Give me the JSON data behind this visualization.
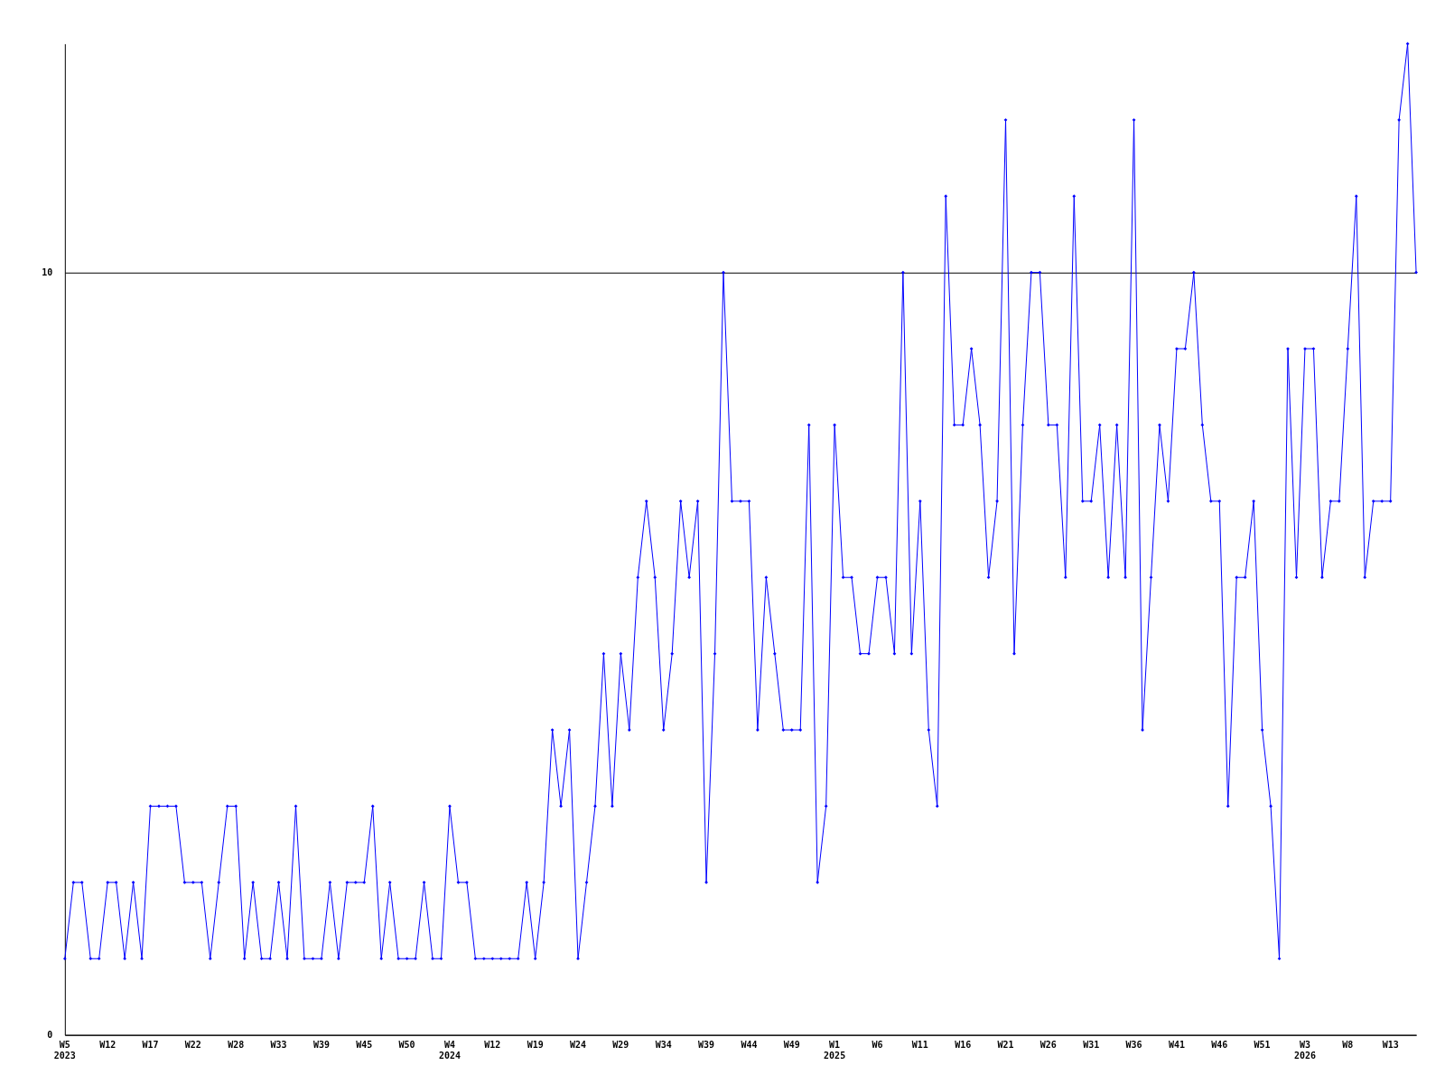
{
  "chart_data": {
    "type": "line",
    "categories": [
      "W5\n2023",
      null,
      null,
      null,
      null,
      "W12",
      null,
      null,
      null,
      null,
      "W17",
      null,
      null,
      null,
      null,
      "W22",
      null,
      null,
      null,
      null,
      "W28",
      null,
      null,
      null,
      null,
      "W33",
      null,
      null,
      null,
      null,
      "W39",
      null,
      null,
      null,
      null,
      "W45",
      null,
      null,
      null,
      null,
      "W50",
      null,
      null,
      null,
      null,
      "W4\n2024",
      null,
      null,
      null,
      null,
      "W12",
      null,
      null,
      null,
      null,
      "W19",
      null,
      null,
      null,
      null,
      "W24",
      null,
      null,
      null,
      null,
      "W29",
      null,
      null,
      null,
      null,
      "W34",
      null,
      null,
      null,
      null,
      "W39",
      null,
      null,
      null,
      null,
      "W44",
      null,
      null,
      null,
      null,
      "W49",
      null,
      null,
      null,
      null,
      "W1\n2025",
      null,
      null,
      null,
      null,
      "W6",
      null,
      null,
      null,
      null,
      "W11",
      null,
      null,
      null,
      null,
      "W16",
      null,
      null,
      null,
      null,
      "W21",
      null,
      null,
      null,
      null,
      "W26",
      null,
      null,
      null,
      null,
      "W31",
      null,
      null,
      null,
      null,
      "W36",
      null,
      null,
      null,
      null,
      "W41",
      null,
      null,
      null,
      null,
      "W46",
      null,
      null,
      null,
      null,
      "W51",
      null,
      null,
      null,
      null,
      "W3\n2026",
      null,
      null,
      null,
      null,
      "W8",
      null,
      null,
      null,
      null,
      "W13",
      null,
      null,
      null
    ],
    "series": [
      {
        "color": "#0000ff",
        "values": [
          1,
          2,
          2,
          1,
          1,
          2,
          2,
          1,
          2,
          1,
          3,
          3,
          3,
          3,
          2,
          2,
          2,
          1,
          2,
          3,
          3,
          1,
          2,
          1,
          1,
          2,
          1,
          3,
          1,
          1,
          1,
          2,
          1,
          2,
          2,
          2,
          3,
          1,
          2,
          1,
          1,
          1,
          2,
          1,
          1,
          3,
          2,
          2,
          1,
          1,
          1,
          1,
          1,
          1,
          2,
          1,
          2,
          4,
          3,
          4,
          1,
          2,
          3,
          5,
          3,
          5,
          4,
          6,
          7,
          6,
          4,
          5,
          7,
          6,
          7,
          2,
          5,
          10,
          7,
          7,
          7,
          4,
          6,
          5,
          4,
          4,
          4,
          8,
          2,
          3,
          8,
          6,
          6,
          5,
          5,
          6,
          6,
          5,
          10,
          5,
          7,
          4,
          3,
          11,
          8,
          8,
          9,
          8,
          6,
          7,
          12,
          5,
          8,
          10,
          10,
          8,
          8,
          6,
          11,
          7,
          7,
          8,
          6,
          8,
          6,
          12,
          4,
          6,
          8,
          7,
          9,
          9,
          10,
          8,
          7,
          7,
          3,
          6,
          6,
          7,
          4,
          3,
          1,
          9,
          6,
          9,
          9,
          6,
          7,
          7,
          9,
          11,
          6,
          7,
          7,
          7,
          12,
          13,
          10
        ]
      }
    ],
    "ylim": [
      0,
      13
    ],
    "yticks": [
      0,
      10
    ],
    "grid": "y",
    "marker": "diamond",
    "line_style": "solid",
    "legend": false
  }
}
